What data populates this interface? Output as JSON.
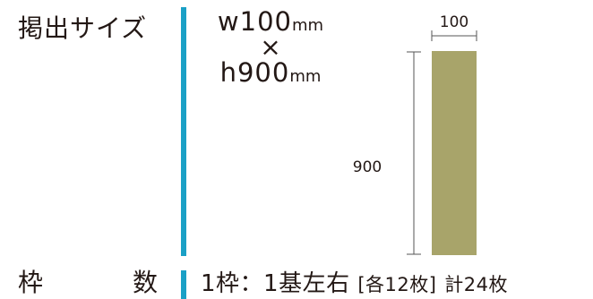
{
  "labels": {
    "size": "掲出サイズ",
    "count_a": "枠",
    "count_b": "数"
  },
  "dimensions": {
    "width_text": "w100",
    "width_unit": "mm",
    "times": "×",
    "height_text": "h900",
    "height_unit": "mm"
  },
  "drawing": {
    "width_label": "100",
    "height_label": "900",
    "fill_color": "#a8a46a",
    "line_color": "#555555"
  },
  "count": {
    "main": "1枠：1基左右",
    "bracket": "[各12枚]",
    "total": "計24枚"
  },
  "colors": {
    "accent": "#1aa0c6",
    "text": "#231815"
  }
}
